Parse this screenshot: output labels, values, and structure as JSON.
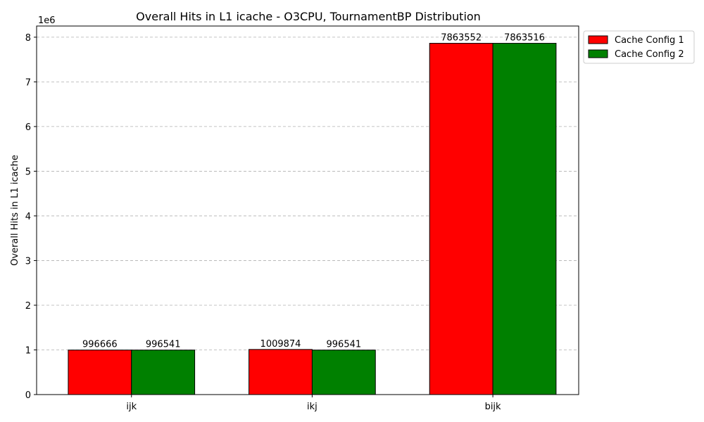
{
  "chart_data": {
    "type": "bar",
    "title": "Overall Hits in L1 icache - O3CPU, TournamentBP Distribution",
    "xlabel": "",
    "ylabel": "Overall Hits in L1 icache",
    "y_offset_label": "1e6",
    "y_scale": 1000000,
    "ylim": [
      0,
      8250000
    ],
    "yticks": [
      0,
      1,
      2,
      3,
      4,
      5,
      6,
      7,
      8
    ],
    "grid": "y-dashed",
    "legend_position": "outside-top-right",
    "categories": [
      "ijk",
      "ikj",
      "bijk"
    ],
    "series": [
      {
        "name": "Cache Config 1",
        "color": "#ff0000",
        "values": [
          996666,
          1009874,
          7863552
        ]
      },
      {
        "name": "Cache Config 2",
        "color": "#008000",
        "values": [
          996541,
          996541,
          7863516
        ]
      }
    ]
  }
}
